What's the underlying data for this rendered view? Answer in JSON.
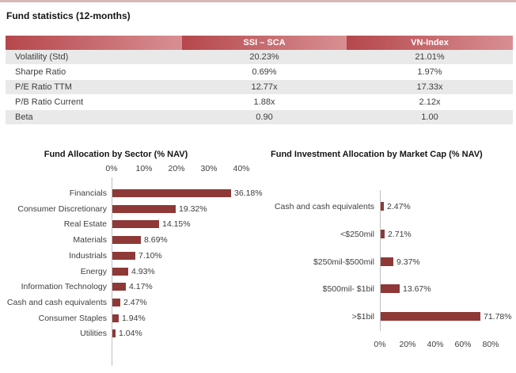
{
  "page": {
    "heading": "Fund statistics (12-months)"
  },
  "table": {
    "columns": [
      "",
      "SSI – SCA",
      "VN-Index"
    ],
    "rows": [
      [
        "Volatility (Std)",
        "20.23%",
        "21.01%"
      ],
      [
        "Sharpe Ratio",
        "0.69%",
        "1.97%"
      ],
      [
        "P/E Ratio TTM",
        "12.77x",
        "17.33x"
      ],
      [
        "P/B Ratio Current",
        "1.88x",
        "2.12x"
      ],
      [
        "Beta",
        "0.90",
        "1.00"
      ]
    ]
  },
  "colors": {
    "bar": "#8e3937",
    "header_gradient_start": "#b5474c",
    "header_gradient_end": "#d88f92",
    "row_stripe": "#e9e9e9",
    "axis_line": "#bfbfbf",
    "top_strip": "#d9b8ba",
    "text": "#3d3d3d"
  },
  "chart_data": [
    {
      "type": "bar",
      "orientation": "horizontal",
      "title": "Fund Allocation by Sector (% NAV)",
      "categories": [
        "Financials",
        "Consumer Discretionary",
        "Real Estate",
        "Materials",
        "Industrials",
        "Energy",
        "Information Technology",
        "Cash and cash equivalents",
        "Consumer Staples",
        "Utilities"
      ],
      "values": [
        36.18,
        19.32,
        14.15,
        8.69,
        7.1,
        4.93,
        4.17,
        2.47,
        1.94,
        1.04
      ],
      "value_labels": [
        "36.18%",
        "19.32%",
        "14.15%",
        "8.69%",
        "7.10%",
        "4.93%",
        "4.17%",
        "2.47%",
        "1.94%",
        "1.04%"
      ],
      "axis_ticks": [
        "0%",
        "10%",
        "20%",
        "30%",
        "40%"
      ],
      "xlim": [
        0,
        40
      ],
      "axis_position": "top",
      "grid": false,
      "legend": false
    },
    {
      "type": "bar",
      "orientation": "horizontal",
      "title": "Fund Investment Allocation by Market Cap (% NAV)",
      "categories": [
        "Cash and cash equivalents",
        "<$250mil",
        "$250mil-$500mil",
        "$500mil- $1bil",
        ">$1bil"
      ],
      "values": [
        2.47,
        2.71,
        9.37,
        13.67,
        71.78
      ],
      "value_labels": [
        "2.47%",
        "2.71%",
        "9.37%",
        "13.67%",
        "71.78%"
      ],
      "axis_ticks": [
        "0%",
        "20%",
        "40%",
        "60%",
        "80%"
      ],
      "xlim": [
        0,
        80
      ],
      "axis_position": "bottom",
      "grid": false,
      "legend": false
    }
  ]
}
